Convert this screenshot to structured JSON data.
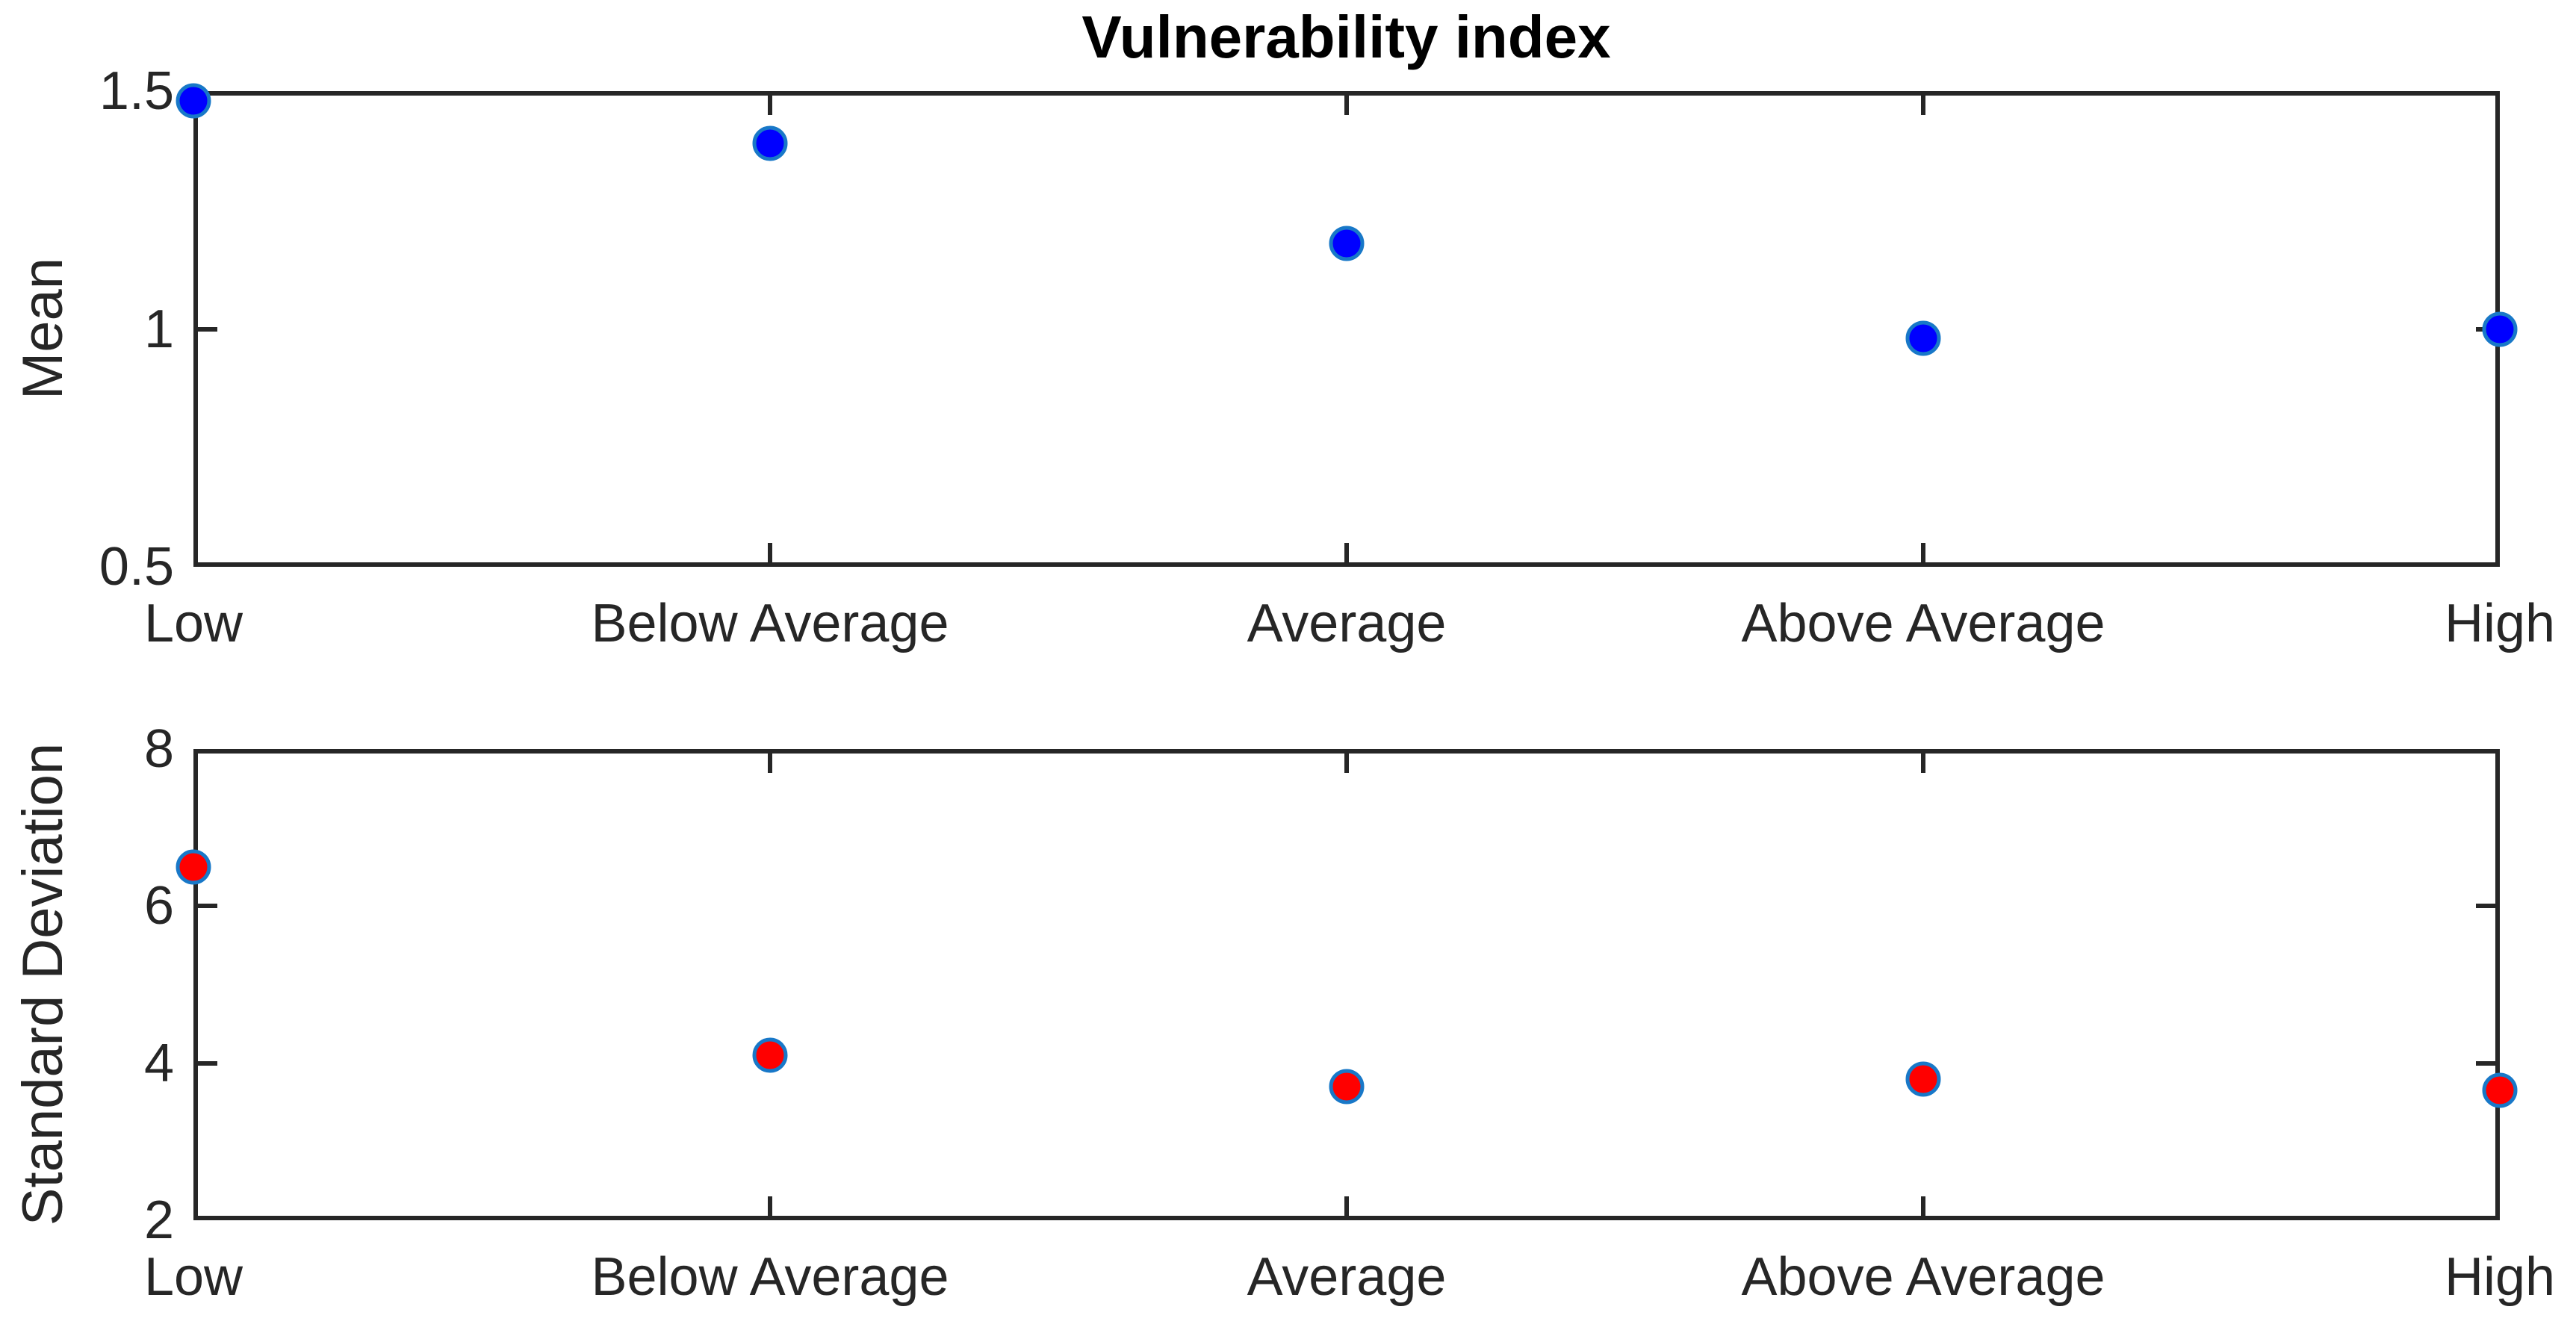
{
  "title": "Vulnerability index",
  "colors": {
    "axis": "#262626",
    "text": "#262626",
    "title": "#000000",
    "background": "#ffffff",
    "marker_edge_blue": "#1878c8"
  },
  "chart_data": [
    {
      "type": "scatter",
      "title": "Vulnerability index",
      "categories": [
        "Low",
        "Below Average",
        "Average",
        "Above Average",
        "High"
      ],
      "values": [
        1.48,
        1.39,
        1.18,
        0.98,
        1.0
      ],
      "ylabel": "Mean",
      "xlabel": "",
      "ylim": [
        0.5,
        1.5
      ],
      "yticks": [
        1.5,
        1,
        0.5
      ],
      "ytick_labels": [
        "1.5",
        "1",
        "0.5"
      ],
      "grid": false,
      "legend": null,
      "marker_fill": "#0000ff",
      "marker_edge": "#1878c8"
    },
    {
      "type": "scatter",
      "title": "",
      "categories": [
        "Low",
        "Below Average",
        "Average",
        "Above Average",
        "High"
      ],
      "values": [
        6.5,
        4.1,
        3.7,
        3.8,
        3.65
      ],
      "ylabel": "Standard Deviation",
      "xlabel": "",
      "ylim": [
        2,
        8
      ],
      "yticks": [
        8,
        6,
        4,
        2
      ],
      "ytick_labels": [
        "8",
        "6",
        "4",
        "2"
      ],
      "grid": false,
      "legend": null,
      "marker_fill": "#ff0000",
      "marker_edge": "#1878c8"
    }
  ]
}
